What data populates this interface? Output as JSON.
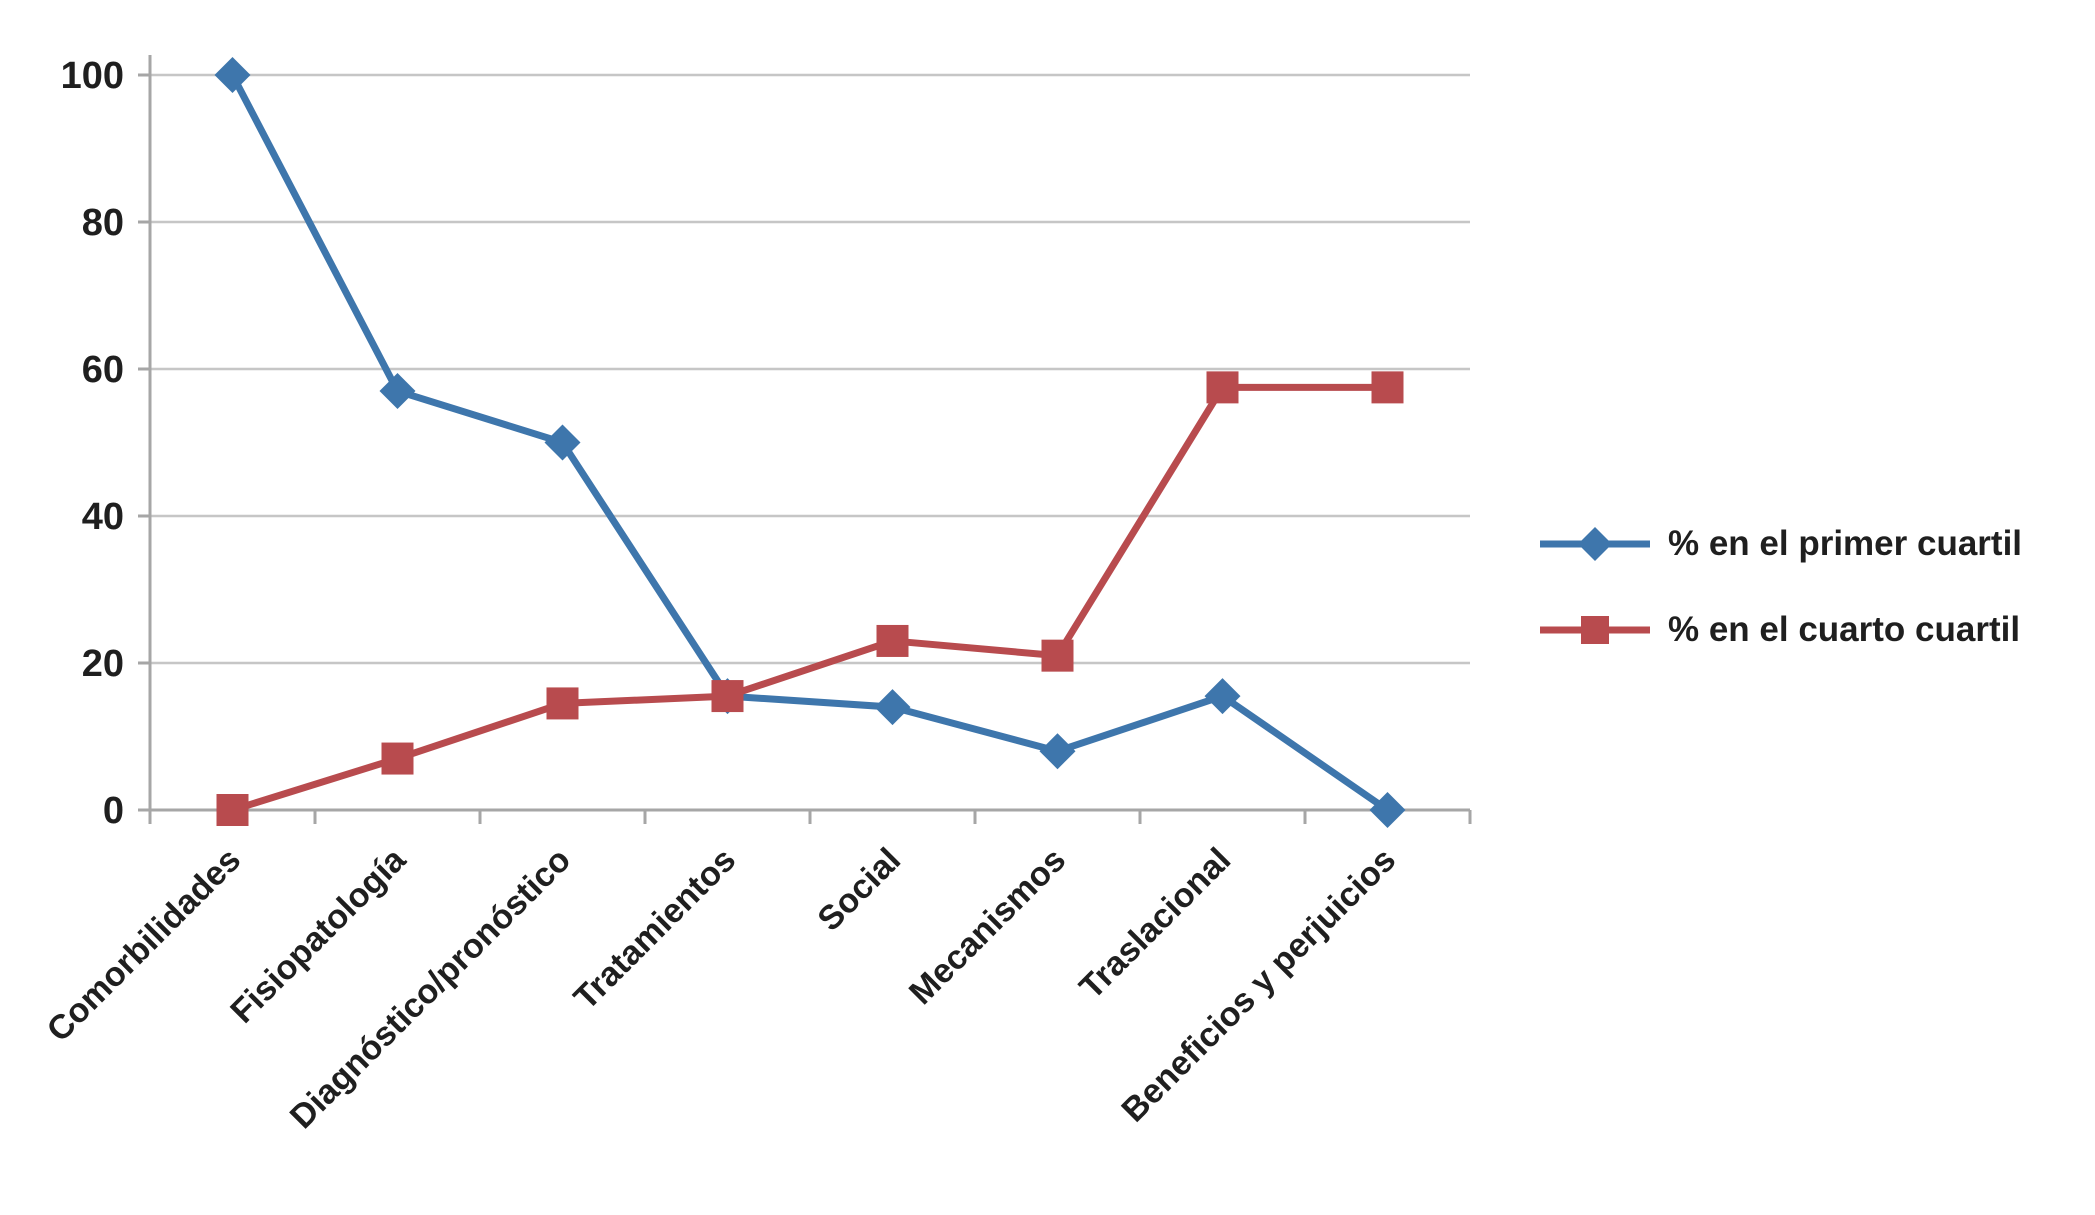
{
  "chart_data": {
    "type": "line",
    "title": "",
    "xlabel": "",
    "ylabel": "",
    "categories": [
      "Comorbilidades",
      "Fisiopatología",
      "Diagnóstico/pronóstico",
      "Tratamientos",
      "Social",
      "Mecanismos",
      "Traslacional",
      "Beneficios y perjuicios"
    ],
    "series": [
      {
        "name": "% en el primer cuartil",
        "marker": "diamond",
        "color": "#3E76AC",
        "values": [
          100,
          57,
          50,
          15.5,
          14,
          8,
          15.5,
          0
        ]
      },
      {
        "name": "% en el cuarto cuartil",
        "marker": "square",
        "color": "#B84B4E",
        "values": [
          0,
          7,
          14.5,
          15.5,
          23,
          21,
          57.5,
          57.5
        ]
      }
    ],
    "ylim": [
      0,
      100
    ],
    "yticks": [
      0,
      20,
      40,
      60,
      80,
      100
    ],
    "grid": "horizontal",
    "legend_position": "right",
    "grid_color": "#C6C6C6",
    "axis_color": "#A6A6A6",
    "text_color": "#1f1f1f"
  }
}
